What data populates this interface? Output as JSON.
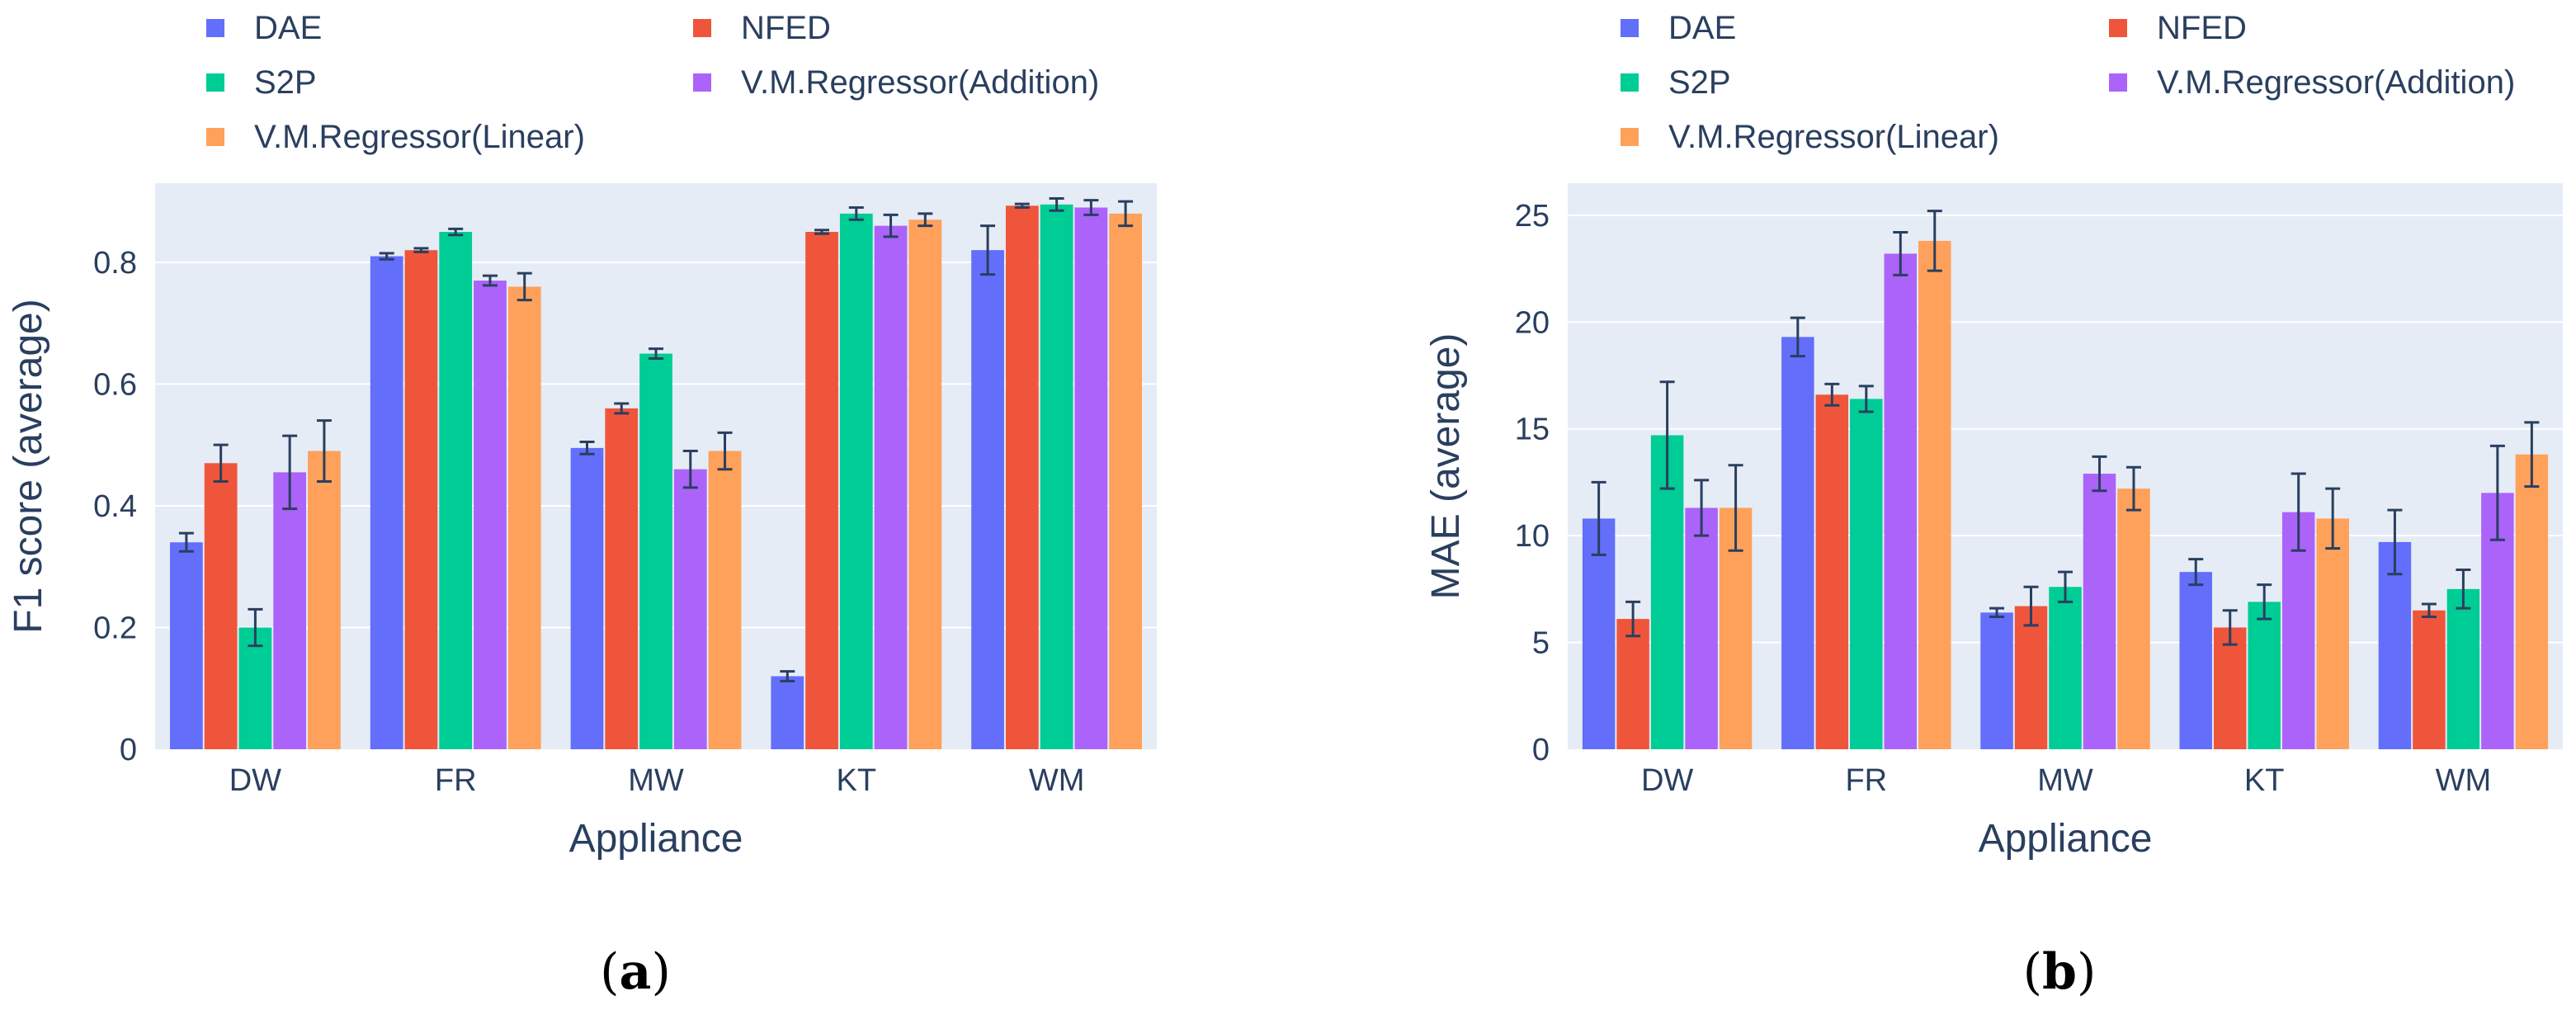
{
  "chart_data": [
    {
      "type": "bar",
      "panel_label": "a",
      "xlabel": "Appliance",
      "ylabel": "F1 score (average)",
      "ylim": [
        0,
        0.93
      ],
      "yticks": [
        0,
        0.2,
        0.4,
        0.6,
        0.8
      ],
      "ytick_labels": [
        "0",
        "0.2",
        "0.4",
        "0.6",
        "0.8"
      ],
      "categories": [
        "DW",
        "FR",
        "MW",
        "KT",
        "WM"
      ],
      "series": [
        {
          "name": "DAE",
          "values": [
            0.34,
            0.81,
            0.495,
            0.12,
            0.82
          ],
          "errors": [
            0.015,
            0.005,
            0.01,
            0.008,
            0.04
          ]
        },
        {
          "name": "NFED",
          "values": [
            0.47,
            0.82,
            0.56,
            0.85,
            0.893
          ],
          "errors": [
            0.03,
            0.003,
            0.008,
            0.003,
            0.003
          ]
        },
        {
          "name": "S2P",
          "values": [
            0.2,
            0.85,
            0.65,
            0.88,
            0.895
          ],
          "errors": [
            0.03,
            0.005,
            0.008,
            0.01,
            0.01
          ]
        },
        {
          "name": "V.M.Regressor(Addition)",
          "values": [
            0.455,
            0.77,
            0.46,
            0.86,
            0.89
          ],
          "errors": [
            0.06,
            0.008,
            0.03,
            0.018,
            0.012
          ]
        },
        {
          "name": "V.M.Regressor(Linear)",
          "values": [
            0.49,
            0.76,
            0.49,
            0.87,
            0.88
          ],
          "errors": [
            0.05,
            0.022,
            0.03,
            0.01,
            0.02
          ]
        }
      ]
    },
    {
      "type": "bar",
      "panel_label": "b",
      "xlabel": "Appliance",
      "ylabel": "MAE (average)",
      "ylim": [
        0,
        26.5
      ],
      "yticks": [
        0,
        5,
        10,
        15,
        20,
        25
      ],
      "ytick_labels": [
        "0",
        "5",
        "10",
        "15",
        "20",
        "25"
      ],
      "categories": [
        "DW",
        "FR",
        "MW",
        "KT",
        "WM"
      ],
      "series": [
        {
          "name": "DAE",
          "values": [
            10.8,
            19.3,
            6.4,
            8.3,
            9.7
          ],
          "errors": [
            1.7,
            0.9,
            0.2,
            0.6,
            1.5
          ]
        },
        {
          "name": "NFED",
          "values": [
            6.1,
            16.6,
            6.7,
            5.7,
            6.5
          ],
          "errors": [
            0.8,
            0.5,
            0.9,
            0.8,
            0.3
          ]
        },
        {
          "name": "S2P",
          "values": [
            14.7,
            16.4,
            7.6,
            6.9,
            7.5
          ],
          "errors": [
            2.5,
            0.6,
            0.7,
            0.8,
            0.9
          ]
        },
        {
          "name": "V.M.Regressor(Addition)",
          "values": [
            11.3,
            23.2,
            12.9,
            11.1,
            12.0
          ],
          "errors": [
            1.3,
            1.0,
            0.8,
            1.8,
            2.2
          ]
        },
        {
          "name": "V.M.Regressor(Linear)",
          "values": [
            11.3,
            23.8,
            12.2,
            10.8,
            13.8
          ],
          "errors": [
            2.0,
            1.4,
            1.0,
            1.4,
            1.5
          ]
        }
      ]
    }
  ],
  "legend": {
    "entries": [
      {
        "name": "DAE",
        "color": "#636efa"
      },
      {
        "name": "NFED",
        "color": "#ef553b"
      },
      {
        "name": "S2P",
        "color": "#00cc96"
      },
      {
        "name": "V.M.Regressor(Addition)",
        "color": "#ab63fa"
      },
      {
        "name": "V.M.Regressor(Linear)",
        "color": "#ffa15a"
      }
    ]
  },
  "colors": {
    "plot_bg": "#e5ecf6",
    "grid": "#ffffff",
    "text": "#2a3f5f",
    "error_bar": "#2a3f5f"
  },
  "captions": {
    "a": {
      "open": "(",
      "letter": "a",
      "close": ")"
    },
    "b": {
      "open": "(",
      "letter": "b",
      "close": ")"
    }
  }
}
